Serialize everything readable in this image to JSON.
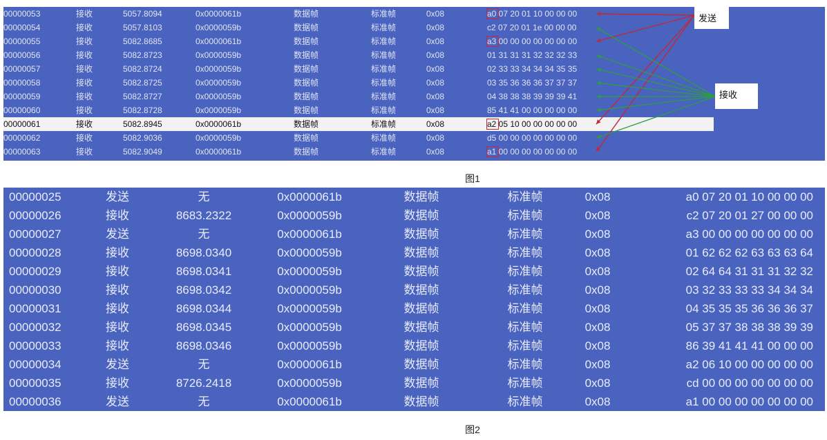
{
  "figure1": {
    "rows": [
      {
        "id": "00000053",
        "dir": "接收",
        "time": "5057.8094",
        "can_id": "0x0000061b",
        "type": "数据帧",
        "fmt": "标准帧",
        "len": "0x08",
        "data": "a0 07 20 01 10 00 00 00"
      },
      {
        "id": "00000054",
        "dir": "接收",
        "time": "5057.8103",
        "can_id": "0x0000059b",
        "type": "数据帧",
        "fmt": "标准帧",
        "len": "0x08",
        "data": "c2 07 20 01 1e 00 00 00"
      },
      {
        "id": "00000055",
        "dir": "接收",
        "time": "5082.8685",
        "can_id": "0x0000061b",
        "type": "数据帧",
        "fmt": "标准帧",
        "len": "0x08",
        "data": "a3 00 00 00 00 00 00 00"
      },
      {
        "id": "00000056",
        "dir": "接收",
        "time": "5082.8723",
        "can_id": "0x0000059b",
        "type": "数据帧",
        "fmt": "标准帧",
        "len": "0x08",
        "data": "01 31 31 31 32 32 32 33"
      },
      {
        "id": "00000057",
        "dir": "接收",
        "time": "5082.8724",
        "can_id": "0x0000059b",
        "type": "数据帧",
        "fmt": "标准帧",
        "len": "0x08",
        "data": "02 33 33 34 34 34 35 35"
      },
      {
        "id": "00000058",
        "dir": "接收",
        "time": "5082.8725",
        "can_id": "0x0000059b",
        "type": "数据帧",
        "fmt": "标准帧",
        "len": "0x08",
        "data": "03 35 36 36 36 37 37 37"
      },
      {
        "id": "00000059",
        "dir": "接收",
        "time": "5082.8727",
        "can_id": "0x0000059b",
        "type": "数据帧",
        "fmt": "标准帧",
        "len": "0x08",
        "data": "04 38 38 38 39 39 39 41"
      },
      {
        "id": "00000060",
        "dir": "接收",
        "time": "5082.8728",
        "can_id": "0x0000059b",
        "type": "数据帧",
        "fmt": "标准帧",
        "len": "0x08",
        "data": "85 41 41 00 00 00 00 00"
      },
      {
        "id": "00000061",
        "dir": "接收",
        "time": "5082.8945",
        "can_id": "0x0000061b",
        "type": "数据帧",
        "fmt": "标准帧",
        "len": "0x08",
        "data": "a2 05 10 00 00 00 00 00"
      },
      {
        "id": "00000062",
        "dir": "接收",
        "time": "5082.9036",
        "can_id": "0x0000059b",
        "type": "数据帧",
        "fmt": "标准帧",
        "len": "0x08",
        "data": "d5 00 00 00 00 00 00 00"
      },
      {
        "id": "00000063",
        "dir": "接收",
        "time": "5082.9049",
        "can_id": "0x0000061b",
        "type": "数据帧",
        "fmt": "标准帧",
        "len": "0x08",
        "data": "a1 00 00 00 00 00 00 00"
      }
    ],
    "callout_send": "发送",
    "callout_recv": "接收",
    "caption": "图1"
  },
  "figure2": {
    "rows": [
      {
        "id": "00000025",
        "dir": "发送",
        "time": "无",
        "can_id": "0x0000061b",
        "type": "数据帧",
        "fmt": "标准帧",
        "len": "0x08",
        "data": "a0 07 20 01 10 00 00 00"
      },
      {
        "id": "00000026",
        "dir": "接收",
        "time": "8683.2322",
        "can_id": "0x0000059b",
        "type": "数据帧",
        "fmt": "标准帧",
        "len": "0x08",
        "data": "c2 07 20 01 27 00 00 00"
      },
      {
        "id": "00000027",
        "dir": "发送",
        "time": "无",
        "can_id": "0x0000061b",
        "type": "数据帧",
        "fmt": "标准帧",
        "len": "0x08",
        "data": "a3 00 00 00 00 00 00 00"
      },
      {
        "id": "00000028",
        "dir": "接收",
        "time": "8698.0340",
        "can_id": "0x0000059b",
        "type": "数据帧",
        "fmt": "标准帧",
        "len": "0x08",
        "data": "01 62 62 62 63 63 63 64"
      },
      {
        "id": "00000029",
        "dir": "接收",
        "time": "8698.0341",
        "can_id": "0x0000059b",
        "type": "数据帧",
        "fmt": "标准帧",
        "len": "0x08",
        "data": "02 64 64 31 31 31 32 32"
      },
      {
        "id": "00000030",
        "dir": "接收",
        "time": "8698.0342",
        "can_id": "0x0000059b",
        "type": "数据帧",
        "fmt": "标准帧",
        "len": "0x08",
        "data": "03 32 33 33 33 34 34 34"
      },
      {
        "id": "00000031",
        "dir": "接收",
        "time": "8698.0344",
        "can_id": "0x0000059b",
        "type": "数据帧",
        "fmt": "标准帧",
        "len": "0x08",
        "data": "04 35 35 35 36 36 36 37"
      },
      {
        "id": "00000032",
        "dir": "接收",
        "time": "8698.0345",
        "can_id": "0x0000059b",
        "type": "数据帧",
        "fmt": "标准帧",
        "len": "0x08",
        "data": "05 37 37 38 38 38 39 39"
      },
      {
        "id": "00000033",
        "dir": "接收",
        "time": "8698.0346",
        "can_id": "0x0000059b",
        "type": "数据帧",
        "fmt": "标准帧",
        "len": "0x08",
        "data": "86 39 41 41 41 00 00 00"
      },
      {
        "id": "00000034",
        "dir": "发送",
        "time": "无",
        "can_id": "0x0000061b",
        "type": "数据帧",
        "fmt": "标准帧",
        "len": "0x08",
        "data": "a2 06 10 00 00 00 00 00"
      },
      {
        "id": "00000035",
        "dir": "接收",
        "time": "8726.2418",
        "can_id": "0x0000059b",
        "type": "数据帧",
        "fmt": "标准帧",
        "len": "0x08",
        "data": "cd 00 00 00 00 00 00 00"
      },
      {
        "id": "00000036",
        "dir": "发送",
        "time": "无",
        "can_id": "0x0000061b",
        "type": "数据帧",
        "fmt": "标准帧",
        "len": "0x08",
        "data": "a1 00 00 00 00 00 00 00"
      }
    ],
    "caption": "图2"
  },
  "colors": {
    "table_bg": "#4a63be",
    "selected_row_bg": "#f2f2f2",
    "send_arrow": "#c0283c",
    "recv_arrow": "#2e9a4a"
  },
  "icons": {
    "send_arrow": "red-arrow-icon",
    "recv_arrow": "green-arrow-icon"
  }
}
